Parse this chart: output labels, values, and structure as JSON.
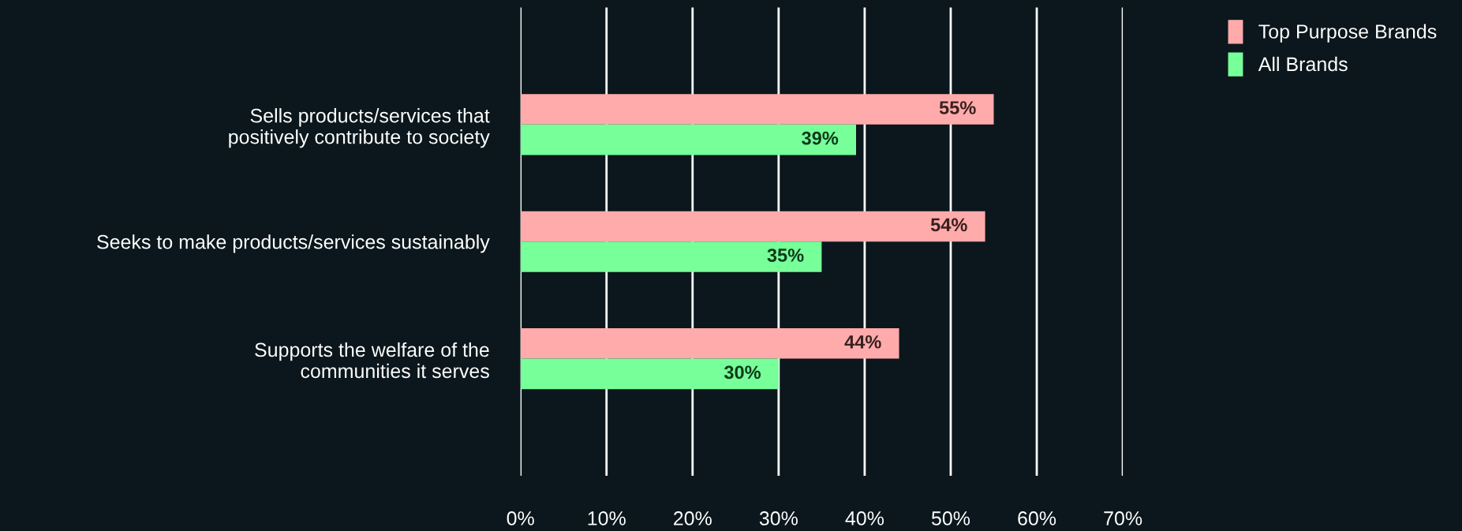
{
  "chart_data": {
    "type": "bar",
    "orientation": "horizontal",
    "categories": [
      "Sells products/services that\npositively contribute to society",
      "Seeks to make products/services sustainably",
      "Supports the welfare of the\ncommunities it serves"
    ],
    "series": [
      {
        "name": "Top Purpose Brands",
        "color": "#ffabab",
        "values": [
          55,
          54,
          44
        ],
        "value_labels": [
          "55%",
          "54%",
          "44%"
        ]
      },
      {
        "name": "All Brands",
        "color": "#77ff99",
        "values": [
          39,
          35,
          30
        ],
        "value_labels": [
          "39%",
          "35%",
          "30%"
        ]
      }
    ],
    "xlim": [
      0,
      70
    ],
    "xticks": [
      {
        "value": 0,
        "label": "0%"
      },
      {
        "value": 10,
        "label": "10%"
      },
      {
        "value": 20,
        "label": "20%"
      },
      {
        "value": 30,
        "label": "30%"
      },
      {
        "value": 40,
        "label": "40%"
      },
      {
        "value": 50,
        "label": "50%"
      },
      {
        "value": 60,
        "label": "60%"
      },
      {
        "value": 70,
        "label": "70%"
      }
    ],
    "grid": "x",
    "legend": "top right"
  }
}
